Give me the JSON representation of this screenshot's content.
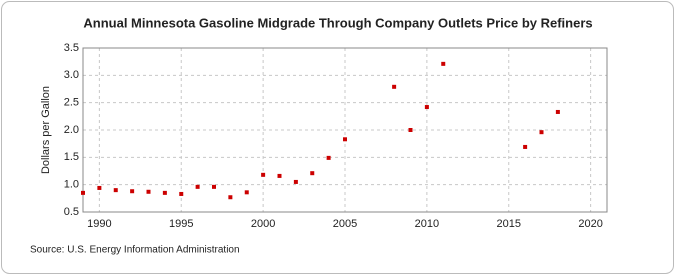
{
  "chart_data": {
    "type": "scatter",
    "title": "Annual Minnesota Gasoline Midgrade Through Company Outlets Price by Refiners",
    "y_label": "Dollars per Gallon",
    "source": "Source: U.S. Energy Information Administration",
    "x": [
      1989,
      1990,
      1991,
      1992,
      1993,
      1994,
      1995,
      1996,
      1997,
      1998,
      1999,
      2000,
      2001,
      2002,
      2003,
      2004,
      2005,
      2008,
      2009,
      2010,
      2011,
      2016,
      2017,
      2018
    ],
    "values": [
      0.85,
      0.94,
      0.9,
      0.88,
      0.87,
      0.85,
      0.83,
      0.96,
      0.96,
      0.77,
      0.86,
      1.18,
      1.16,
      1.05,
      1.21,
      1.49,
      1.83,
      2.79,
      2.0,
      2.42,
      3.21,
      1.69,
      1.96,
      2.33
    ],
    "color": "#cc0000",
    "xlim": [
      1989,
      2021
    ],
    "xticks": [
      1990,
      1995,
      2000,
      2005,
      2010,
      2015,
      2020
    ],
    "ylim": [
      0.5,
      3.5
    ],
    "yticks": [
      0.5,
      {
        "value": 1,
        "label": "1.0"
      },
      1.5,
      {
        "value": 2,
        "label": "2.0"
      },
      2.5,
      {
        "value": 3,
        "label": "3.0"
      },
      3.5
    ],
    "grid": true
  }
}
